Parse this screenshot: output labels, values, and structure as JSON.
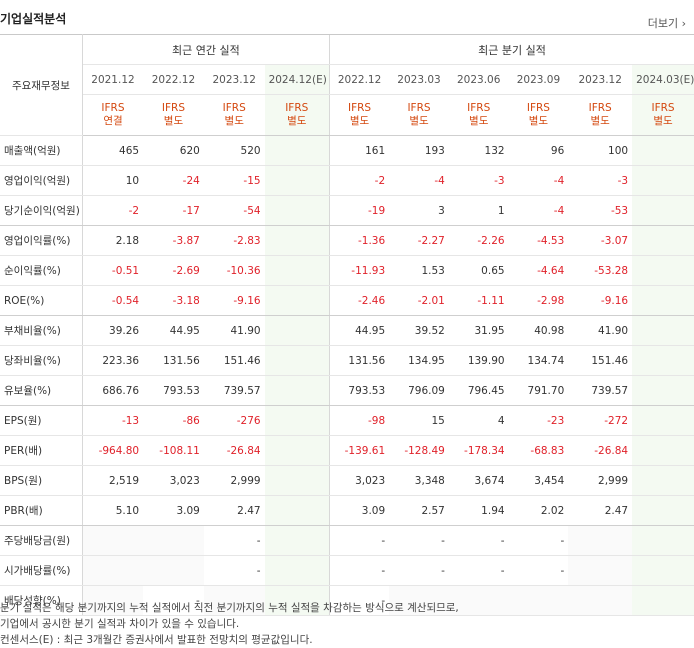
{
  "header": {
    "title": "기업실적분석",
    "more_label": "더보기"
  },
  "table": {
    "row_header_label": "주요재무정보",
    "annual_label": "최근 연간 실적",
    "quarter_label": "최근 분기 실적",
    "annual_periods": [
      "2021.12",
      "2022.12",
      "2023.12",
      "2024.12(E)"
    ],
    "quarter_periods": [
      "2022.12",
      "2023.03",
      "2023.06",
      "2023.09",
      "2023.12",
      "2024.03(E)"
    ],
    "ifrs_annual": [
      [
        "IFRS",
        "연결"
      ],
      [
        "IFRS",
        "별도"
      ],
      [
        "IFRS",
        "별도"
      ],
      [
        "IFRS",
        "별도"
      ]
    ],
    "ifrs_quarter": [
      [
        "IFRS",
        "별도"
      ],
      [
        "IFRS",
        "별도"
      ],
      [
        "IFRS",
        "별도"
      ],
      [
        "IFRS",
        "별도"
      ],
      [
        "IFRS",
        "별도"
      ],
      [
        "IFRS",
        "별도"
      ]
    ],
    "rows": [
      {
        "label": "매출액(억원)",
        "annual": [
          "465",
          "620",
          "520",
          ""
        ],
        "quarter": [
          "161",
          "193",
          "132",
          "96",
          "100",
          ""
        ]
      },
      {
        "label": "영업이익(억원)",
        "annual": [
          "10",
          "-24",
          "-15",
          ""
        ],
        "quarter": [
          "-2",
          "-4",
          "-3",
          "-4",
          "-3",
          ""
        ]
      },
      {
        "label": "당기순이익(억원)",
        "annual": [
          "-2",
          "-17",
          "-54",
          ""
        ],
        "quarter": [
          "-19",
          "3",
          "1",
          "-4",
          "-53",
          ""
        ]
      },
      {
        "label": "영업이익률(%)",
        "annual": [
          "2.18",
          "-3.87",
          "-2.83",
          ""
        ],
        "quarter": [
          "-1.36",
          "-2.27",
          "-2.26",
          "-4.53",
          "-3.07",
          ""
        ]
      },
      {
        "label": "순이익률(%)",
        "annual": [
          "-0.51",
          "-2.69",
          "-10.36",
          ""
        ],
        "quarter": [
          "-11.93",
          "1.53",
          "0.65",
          "-4.64",
          "-53.28",
          ""
        ]
      },
      {
        "label": "ROE(%)",
        "annual": [
          "-0.54",
          "-3.18",
          "-9.16",
          ""
        ],
        "quarter": [
          "-2.46",
          "-2.01",
          "-1.11",
          "-2.98",
          "-9.16",
          ""
        ]
      },
      {
        "label": "부채비율(%)",
        "annual": [
          "39.26",
          "44.95",
          "41.90",
          ""
        ],
        "quarter": [
          "44.95",
          "39.52",
          "31.95",
          "40.98",
          "41.90",
          ""
        ]
      },
      {
        "label": "당좌비율(%)",
        "annual": [
          "223.36",
          "131.56",
          "151.46",
          ""
        ],
        "quarter": [
          "131.56",
          "134.95",
          "139.90",
          "134.74",
          "151.46",
          ""
        ]
      },
      {
        "label": "유보율(%)",
        "annual": [
          "686.76",
          "793.53",
          "739.57",
          ""
        ],
        "quarter": [
          "793.53",
          "796.09",
          "796.45",
          "791.70",
          "739.57",
          ""
        ]
      },
      {
        "label": "EPS(원)",
        "annual": [
          "-13",
          "-86",
          "-276",
          ""
        ],
        "quarter": [
          "-98",
          "15",
          "4",
          "-23",
          "-272",
          ""
        ]
      },
      {
        "label": "PER(배)",
        "annual": [
          "-964.80",
          "-108.11",
          "-26.84",
          ""
        ],
        "quarter": [
          "-139.61",
          "-128.49",
          "-178.34",
          "-68.83",
          "-26.84",
          ""
        ]
      },
      {
        "label": "BPS(원)",
        "annual": [
          "2,519",
          "3,023",
          "2,999",
          ""
        ],
        "quarter": [
          "3,023",
          "3,348",
          "3,674",
          "3,454",
          "2,999",
          ""
        ]
      },
      {
        "label": "PBR(배)",
        "annual": [
          "5.10",
          "3.09",
          "2.47",
          ""
        ],
        "quarter": [
          "3.09",
          "2.57",
          "1.94",
          "2.02",
          "2.47",
          ""
        ]
      },
      {
        "label": "주당배당금(원)",
        "annual": [
          "",
          "",
          "-",
          ""
        ],
        "quarter": [
          "-",
          "-",
          "-",
          "-",
          "",
          ""
        ]
      },
      {
        "label": "시가배당률(%)",
        "annual": [
          "",
          "",
          "-",
          ""
        ],
        "quarter": [
          "-",
          "-",
          "-",
          "-",
          "",
          ""
        ]
      },
      {
        "label": "배당성향(%)",
        "annual": [
          "",
          "-",
          "",
          ""
        ],
        "quarter": [
          "-",
          "",
          "",
          "",
          "",
          ""
        ]
      }
    ]
  },
  "notes": [
    "분기 실적은 해당 분기까지의 누적 실적에서 직전 분기까지의 누적 실적을 차감하는 방식으로 계산되므로,",
    "기업에서 공시한 분기 실적과 차이가 있을 수 있습니다.",
    "컨센서스(E) : 최근 3개월간 증권사에서 발표한 전망치의 평균값입니다."
  ]
}
